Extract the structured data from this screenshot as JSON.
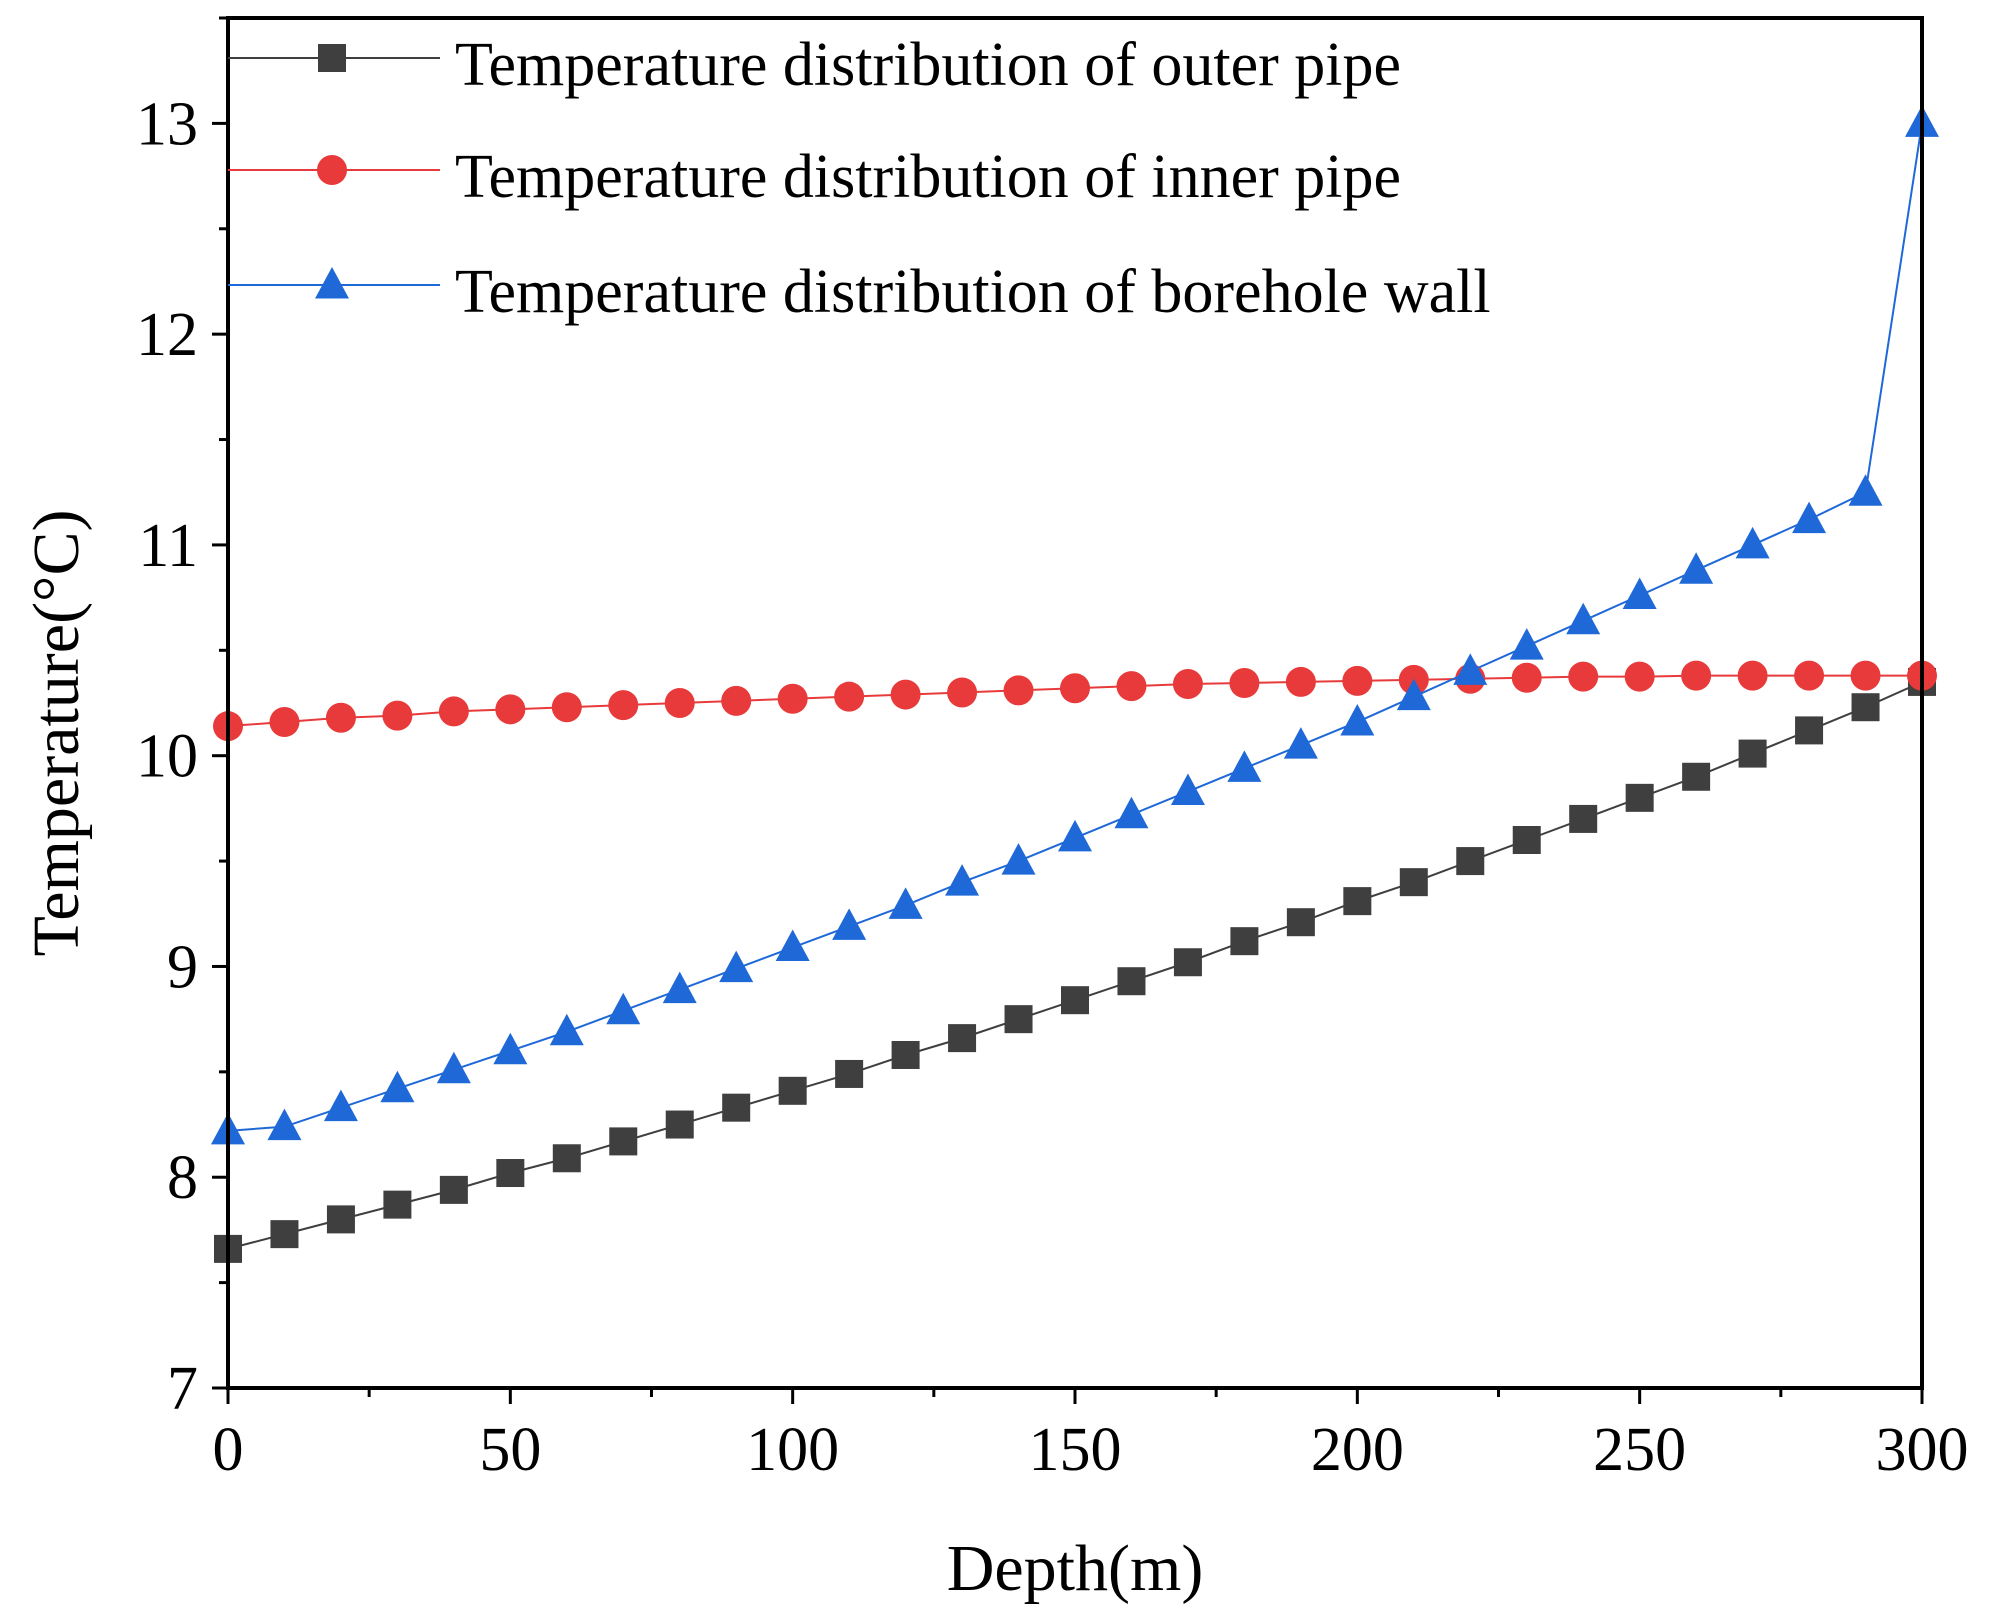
{
  "chart_data": {
    "type": "line",
    "title": "",
    "xlabel": "Depth(m)",
    "ylabel": "Temperature(°C)",
    "xlim": [
      0,
      300
    ],
    "ylim": [
      7,
      13.5
    ],
    "xticks": [
      0,
      50,
      100,
      150,
      200,
      250,
      300
    ],
    "xtick_labels": [
      "0",
      "50",
      "100",
      "150",
      "200",
      "250",
      "300"
    ],
    "yticks": [
      7,
      8,
      9,
      10,
      11,
      12,
      13
    ],
    "ytick_labels": [
      "7",
      "8",
      "9",
      "10",
      "11",
      "12",
      "13"
    ],
    "grid": false,
    "legend_position": "top",
    "x": [
      0,
      10,
      20,
      30,
      40,
      50,
      60,
      70,
      80,
      90,
      100,
      110,
      120,
      130,
      140,
      150,
      160,
      170,
      180,
      190,
      200,
      210,
      220,
      230,
      240,
      250,
      260,
      270,
      280,
      290,
      300
    ],
    "series": [
      {
        "name": "Temperature distribution of outer pipe",
        "color": "#3f3f3f",
        "marker": "square",
        "values": [
          7.66,
          7.73,
          7.8,
          7.87,
          7.94,
          8.02,
          8.09,
          8.17,
          8.25,
          8.33,
          8.41,
          8.49,
          8.58,
          8.66,
          8.75,
          8.84,
          8.93,
          9.02,
          9.12,
          9.21,
          9.31,
          9.4,
          9.5,
          9.6,
          9.7,
          9.8,
          9.9,
          10.01,
          10.12,
          10.23,
          10.35
        ]
      },
      {
        "name": "Temperature distribution of inner pipe",
        "color": "#e83a3a",
        "marker": "circle",
        "values": [
          10.14,
          10.16,
          10.18,
          10.19,
          10.21,
          10.22,
          10.23,
          10.24,
          10.25,
          10.26,
          10.27,
          10.28,
          10.29,
          10.3,
          10.31,
          10.32,
          10.33,
          10.34,
          10.345,
          10.35,
          10.355,
          10.36,
          10.365,
          10.37,
          10.375,
          10.375,
          10.38,
          10.38,
          10.38,
          10.38,
          10.38
        ]
      },
      {
        "name": "Temperature distribution of borehole wall",
        "color": "#1f68d8",
        "marker": "triangle",
        "values": [
          8.22,
          8.24,
          8.33,
          8.42,
          8.51,
          8.6,
          8.69,
          8.79,
          8.89,
          8.99,
          9.09,
          9.19,
          9.29,
          9.4,
          9.5,
          9.61,
          9.72,
          9.83,
          9.94,
          10.05,
          10.16,
          10.28,
          10.4,
          10.52,
          10.64,
          10.76,
          10.88,
          11.0,
          11.12,
          11.25,
          13.0
        ]
      }
    ]
  }
}
